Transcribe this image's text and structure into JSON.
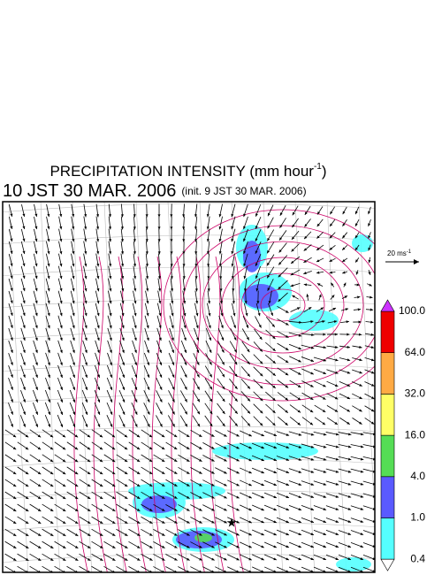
{
  "header": {
    "title": "PRECIPITATION INTENSITY (mm hour",
    "title_exponent": "-1",
    "title_close": ")",
    "subtitle": "10 JST 30 MAR. 2006",
    "init": "(init. 9 JST 30 MAR. 2006)"
  },
  "vector_scale": {
    "label": "20 ms",
    "exponent": "-1"
  },
  "colorbar": {
    "labels": [
      "0.4",
      "1.0",
      "4.0",
      "16.0",
      "32.0",
      "64.0",
      "100.0"
    ],
    "colors": [
      "#55ffff",
      "#5a5aff",
      "#55dd55",
      "#ffff66",
      "#ffaa44",
      "#ee0000"
    ],
    "under_color": "#ffffff",
    "over_color": "#cc33ff"
  }
}
